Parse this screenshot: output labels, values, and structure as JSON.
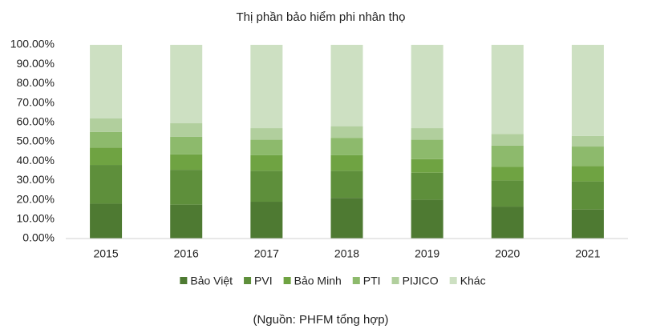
{
  "chart_data": {
    "type": "stacked_bar",
    "title": "Thị phần bảo hiểm phi nhân thọ",
    "categories": [
      "2015",
      "2016",
      "2017",
      "2018",
      "2019",
      "2020",
      "2021"
    ],
    "series": [
      {
        "name": "Bảo Việt",
        "color": "#4e7a32",
        "values": [
          18,
          17.5,
          19,
          21,
          20,
          16.5,
          15
        ]
      },
      {
        "name": "PVI",
        "color": "#5e8f3b",
        "values": [
          20,
          18,
          16,
          14,
          14,
          13.5,
          14.5
        ]
      },
      {
        "name": "Bảo Minh",
        "color": "#6fa342",
        "values": [
          9,
          8,
          8,
          8,
          7,
          7,
          8
        ]
      },
      {
        "name": "PTI",
        "color": "#8dba6c",
        "values": [
          8,
          9,
          8,
          9,
          10,
          11,
          10
        ]
      },
      {
        "name": "PIJICO",
        "color": "#b1cf9d",
        "values": [
          7,
          7,
          6,
          6,
          6,
          6,
          5.5
        ]
      },
      {
        "name": "Khác",
        "color": "#cde0c2",
        "values": [
          38,
          40.5,
          43,
          42,
          43,
          46,
          47
        ]
      }
    ],
    "ylim": [
      0,
      100
    ],
    "yticks": [
      {
        "value": 0,
        "label": "0.00%"
      },
      {
        "value": 10,
        "label": "10.00%"
      },
      {
        "value": 20,
        "label": "20.00%"
      },
      {
        "value": 30,
        "label": "30.00%"
      },
      {
        "value": 40,
        "label": "40.00%"
      },
      {
        "value": 50,
        "label": "50.00%"
      },
      {
        "value": 60,
        "label": "60.00%"
      },
      {
        "value": 70,
        "label": "70.00%"
      },
      {
        "value": 80,
        "label": "80.00%"
      },
      {
        "value": 90,
        "label": "90.00%"
      },
      {
        "value": 100,
        "label": "100.00%"
      }
    ],
    "grid": false,
    "legend": "bottom",
    "note": "(Nguồn: PHFM tổng hợp)"
  }
}
